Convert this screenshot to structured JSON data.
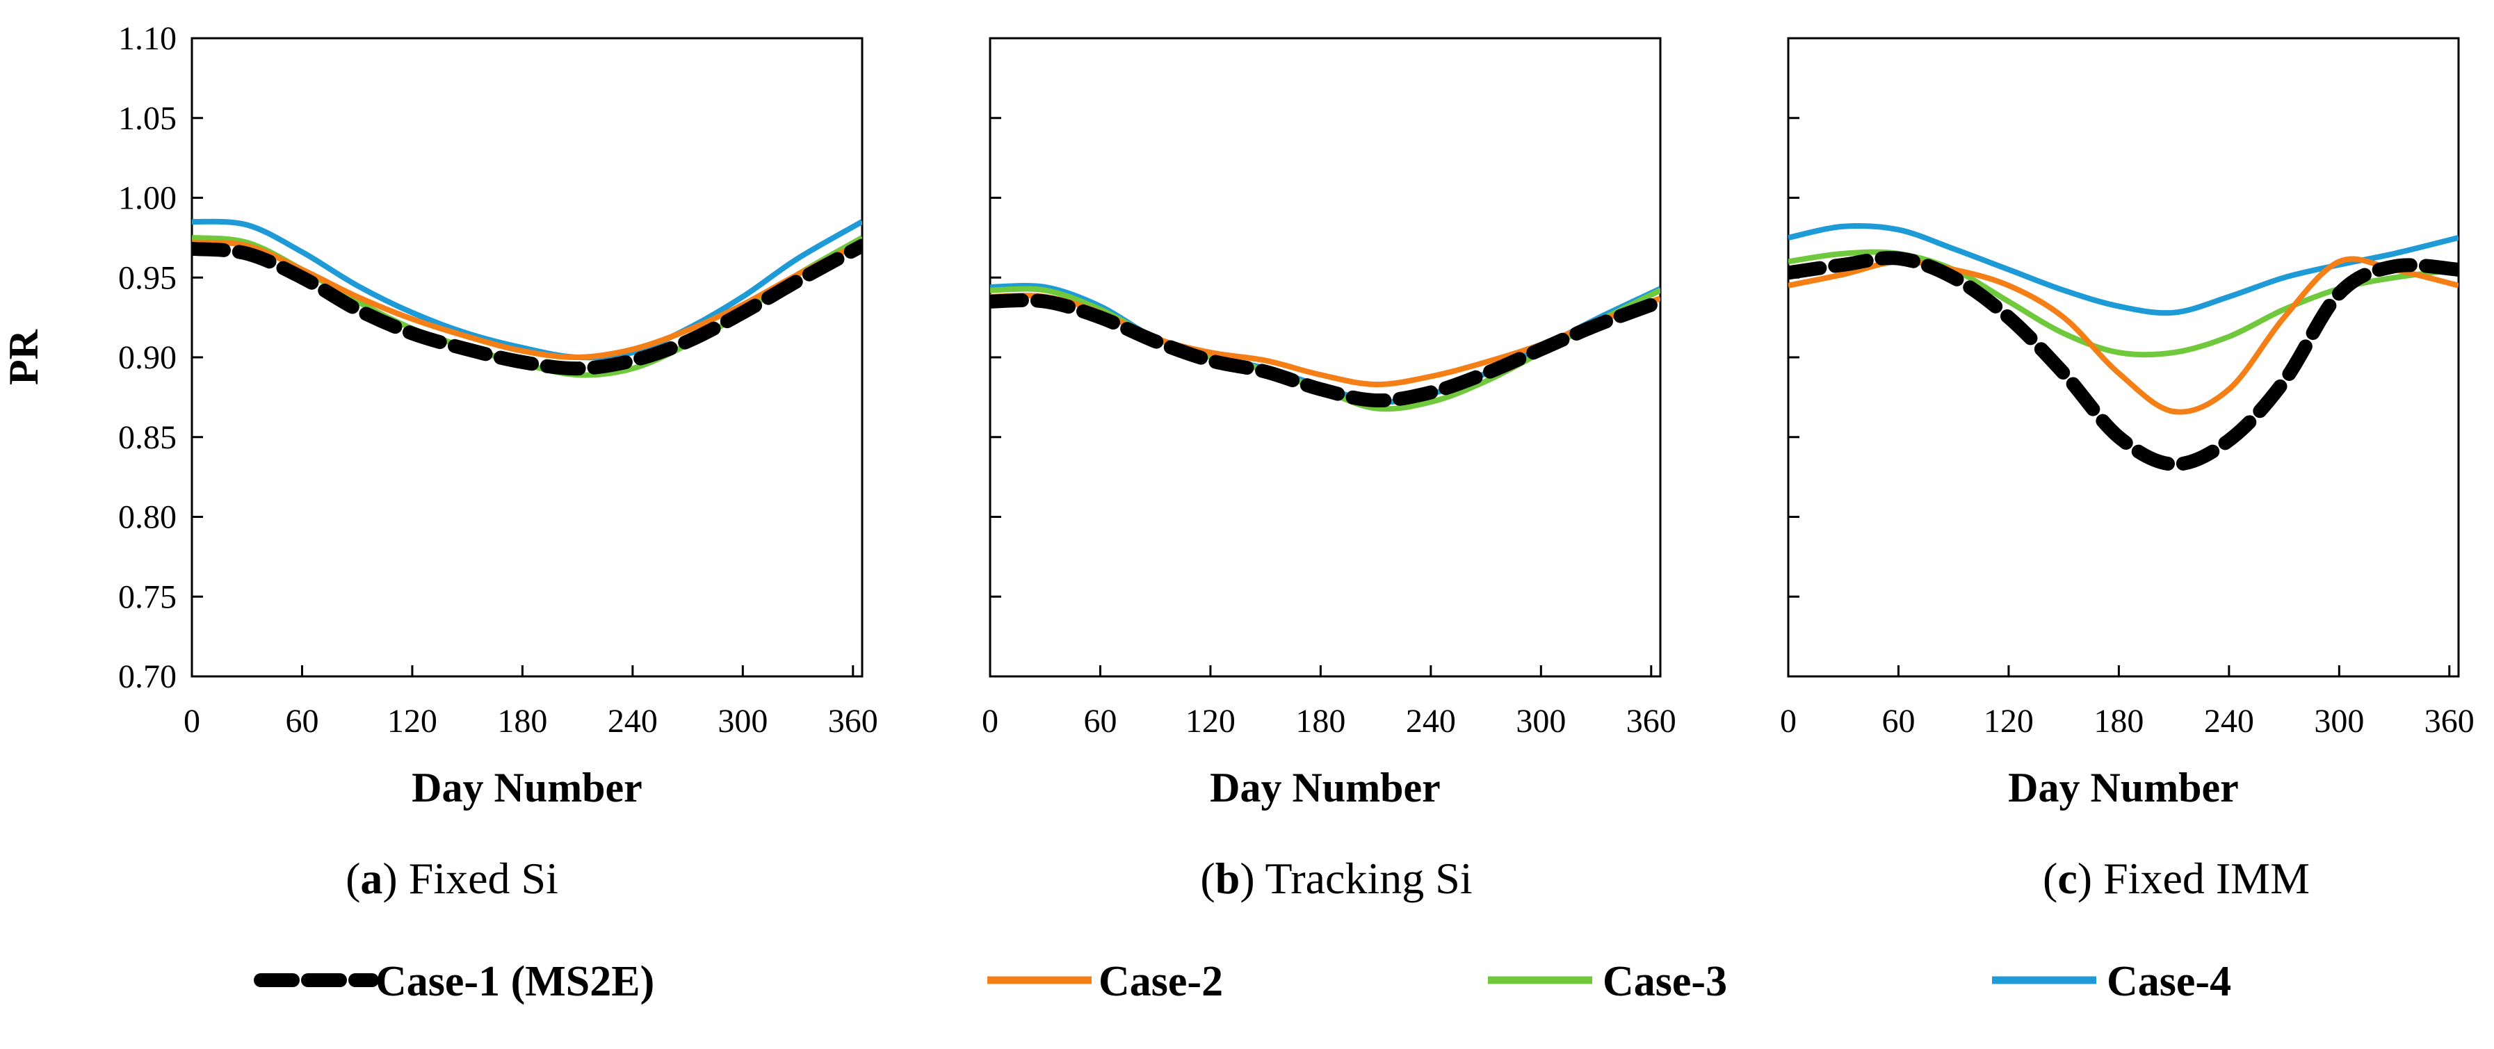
{
  "figure": {
    "legend": [
      {
        "name": "Case-1 (MS2E)",
        "color": "#000000",
        "dashed": true
      },
      {
        "name": "Case-2",
        "color": "#F57F17",
        "dashed": false
      },
      {
        "name": "Case-3",
        "color": "#70C93C",
        "dashed": false
      },
      {
        "name": "Case-4",
        "color": "#1E9BD7",
        "dashed": false
      }
    ]
  },
  "chart_data": [
    {
      "type": "line",
      "panel_label": "a",
      "caption_text": "Fixed Si",
      "xlabel": "Day Number",
      "ylabel": "PR",
      "xlim": [
        0,
        365
      ],
      "ylim": [
        0.7,
        1.1
      ],
      "xticks": [
        "0",
        "60",
        "120",
        "180",
        "240",
        "300",
        "360"
      ],
      "yticks": [
        "0.70",
        "0.75",
        "0.80",
        "0.85",
        "0.90",
        "0.95",
        "1.00",
        "1.05",
        "1.10"
      ],
      "x": [
        0,
        30,
        60,
        90,
        120,
        150,
        180,
        210,
        240,
        270,
        300,
        330,
        365
      ],
      "series": [
        {
          "name": "Case-1 (MS2E)",
          "values": [
            0.968,
            0.965,
            0.95,
            0.93,
            0.915,
            0.905,
            0.897,
            0.893,
            0.898,
            0.91,
            0.928,
            0.948,
            0.97
          ]
        },
        {
          "name": "Case-2",
          "values": [
            0.972,
            0.97,
            0.955,
            0.938,
            0.924,
            0.913,
            0.904,
            0.9,
            0.905,
            0.917,
            0.933,
            0.952,
            0.972
          ]
        },
        {
          "name": "Case-3",
          "values": [
            0.975,
            0.972,
            0.955,
            0.935,
            0.918,
            0.906,
            0.896,
            0.889,
            0.893,
            0.908,
            0.928,
            0.952,
            0.975
          ]
        },
        {
          "name": "Case-4",
          "values": [
            0.985,
            0.983,
            0.966,
            0.945,
            0.928,
            0.915,
            0.906,
            0.9,
            0.903,
            0.918,
            0.938,
            0.962,
            0.985
          ]
        }
      ]
    },
    {
      "type": "line",
      "panel_label": "b",
      "caption_text": "Tracking Si",
      "xlabel": "Day Number",
      "ylabel": "",
      "xlim": [
        0,
        365
      ],
      "ylim": [
        0.7,
        1.1
      ],
      "xticks": [
        "0",
        "60",
        "120",
        "180",
        "240",
        "300",
        "360"
      ],
      "yticks": [],
      "x": [
        0,
        30,
        60,
        90,
        120,
        150,
        180,
        210,
        240,
        270,
        300,
        330,
        365
      ],
      "series": [
        {
          "name": "Case-1 (MS2E)",
          "values": [
            0.935,
            0.935,
            0.925,
            0.91,
            0.898,
            0.891,
            0.88,
            0.873,
            0.878,
            0.89,
            0.905,
            0.92,
            0.935
          ]
        },
        {
          "name": "Case-2",
          "values": [
            0.938,
            0.938,
            0.928,
            0.912,
            0.903,
            0.898,
            0.889,
            0.883,
            0.888,
            0.897,
            0.908,
            0.922,
            0.937
          ]
        },
        {
          "name": "Case-3",
          "values": [
            0.942,
            0.942,
            0.93,
            0.912,
            0.9,
            0.892,
            0.88,
            0.868,
            0.872,
            0.885,
            0.903,
            0.922,
            0.942
          ]
        },
        {
          "name": "Case-4",
          "values": [
            0.944,
            0.944,
            0.932,
            0.912,
            0.901,
            0.893,
            0.882,
            0.872,
            0.877,
            0.89,
            0.906,
            0.924,
            0.943
          ]
        }
      ]
    },
    {
      "type": "line",
      "panel_label": "c",
      "caption_text": "Fixed IMM",
      "xlabel": "Day Number",
      "ylabel": "",
      "xlim": [
        0,
        365
      ],
      "ylim": [
        0.7,
        1.1
      ],
      "xticks": [
        "0",
        "60",
        "120",
        "180",
        "240",
        "300",
        "360"
      ],
      "yticks": [],
      "x": [
        0,
        30,
        60,
        90,
        120,
        150,
        180,
        210,
        240,
        270,
        300,
        330,
        365
      ],
      "series": [
        {
          "name": "Case-1 (MS2E)",
          "values": [
            0.953,
            0.958,
            0.962,
            0.95,
            0.925,
            0.89,
            0.85,
            0.833,
            0.848,
            0.885,
            0.94,
            0.957,
            0.955
          ]
        },
        {
          "name": "Case-2",
          "values": [
            0.945,
            0.952,
            0.96,
            0.955,
            0.945,
            0.925,
            0.89,
            0.866,
            0.88,
            0.925,
            0.96,
            0.955,
            0.945
          ]
        },
        {
          "name": "Case-3",
          "values": [
            0.96,
            0.965,
            0.965,
            0.955,
            0.935,
            0.915,
            0.903,
            0.903,
            0.913,
            0.93,
            0.943,
            0.95,
            0.955
          ]
        },
        {
          "name": "Case-4",
          "values": [
            0.975,
            0.982,
            0.98,
            0.968,
            0.955,
            0.942,
            0.932,
            0.928,
            0.938,
            0.95,
            0.958,
            0.965,
            0.975
          ]
        }
      ]
    }
  ]
}
